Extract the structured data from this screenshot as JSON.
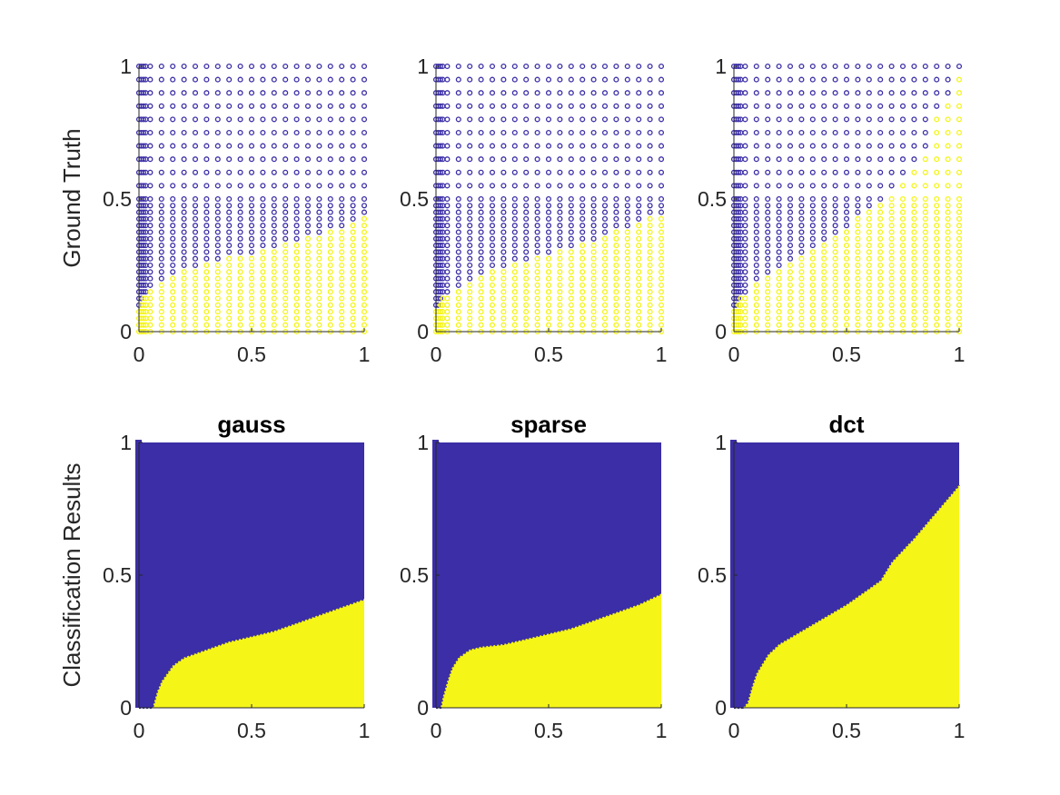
{
  "colors": {
    "class_a": "#3b2ea6",
    "class_b": "#f5f518",
    "axis": "#262626"
  },
  "row_labels": [
    "Ground Truth",
    "Classification Results"
  ],
  "chart_data": [
    {
      "type": "scatter",
      "row": "Ground Truth",
      "title": "",
      "xlim": [
        0,
        1
      ],
      "ylim": [
        0,
        1
      ],
      "xticks": [
        "0",
        "0.5",
        "1"
      ],
      "yticks": [
        "0",
        "0.5",
        "1"
      ],
      "boundary": {
        "x": [
          0,
          0.02,
          0.05,
          0.1,
          0.2,
          0.3,
          0.4,
          0.5,
          0.6,
          0.7,
          0.8,
          0.9,
          1.0
        ],
        "y": [
          0.08,
          0.13,
          0.16,
          0.19,
          0.23,
          0.26,
          0.28,
          0.3,
          0.32,
          0.34,
          0.37,
          0.4,
          0.43
        ]
      }
    },
    {
      "type": "scatter",
      "row": "Ground Truth",
      "title": "",
      "xlim": [
        0,
        1
      ],
      "ylim": [
        0,
        1
      ],
      "xticks": [
        "0",
        "0.5",
        "1"
      ],
      "yticks": [
        "0",
        "0.5",
        "1"
      ],
      "boundary": {
        "x": [
          0,
          0.02,
          0.05,
          0.1,
          0.2,
          0.3,
          0.4,
          0.5,
          0.6,
          0.7,
          0.8,
          0.9,
          1.0
        ],
        "y": [
          0.08,
          0.12,
          0.14,
          0.17,
          0.22,
          0.25,
          0.27,
          0.29,
          0.32,
          0.35,
          0.38,
          0.41,
          0.45
        ]
      }
    },
    {
      "type": "scatter",
      "row": "Ground Truth",
      "title": "",
      "xlim": [
        0,
        1
      ],
      "ylim": [
        0,
        1
      ],
      "xticks": [
        "0",
        "0.5",
        "1"
      ],
      "yticks": [
        "0",
        "0.5",
        "1"
      ],
      "boundary": {
        "x": [
          0,
          0.02,
          0.05,
          0.1,
          0.2,
          0.3,
          0.4,
          0.5,
          0.6,
          0.65,
          0.7,
          0.8,
          0.85,
          0.9,
          1.0
        ],
        "y": [
          0.08,
          0.12,
          0.15,
          0.18,
          0.24,
          0.3,
          0.35,
          0.4,
          0.46,
          0.49,
          0.55,
          0.62,
          0.7,
          0.82,
          0.98
        ]
      }
    },
    {
      "type": "scatter",
      "row": "Classification Results",
      "title": "gauss",
      "xlim": [
        0,
        1
      ],
      "ylim": [
        0,
        1
      ],
      "xticks": [
        "0",
        "0.5",
        "1"
      ],
      "yticks": [
        "0",
        "0.5",
        "1"
      ],
      "boundary": {
        "x": [
          0,
          0.03,
          0.06,
          0.08,
          0.1,
          0.15,
          0.2,
          0.3,
          0.4,
          0.5,
          0.6,
          0.7,
          0.8,
          0.9,
          1.0
        ],
        "y": [
          0,
          0,
          0,
          0.06,
          0.1,
          0.16,
          0.19,
          0.22,
          0.25,
          0.27,
          0.29,
          0.32,
          0.35,
          0.38,
          0.41
        ]
      }
    },
    {
      "type": "scatter",
      "row": "Classification Results",
      "title": "sparse",
      "xlim": [
        0,
        1
      ],
      "ylim": [
        0,
        1
      ],
      "xticks": [
        "0",
        "0.5",
        "1"
      ],
      "yticks": [
        "0",
        "0.5",
        "1"
      ],
      "boundary": {
        "x": [
          0,
          0.02,
          0.03,
          0.05,
          0.07,
          0.1,
          0.15,
          0.2,
          0.3,
          0.4,
          0.5,
          0.6,
          0.7,
          0.8,
          0.9,
          1.0
        ],
        "y": [
          0,
          0,
          0.04,
          0.1,
          0.15,
          0.19,
          0.22,
          0.23,
          0.24,
          0.26,
          0.28,
          0.3,
          0.33,
          0.36,
          0.39,
          0.43
        ]
      }
    },
    {
      "type": "scatter",
      "row": "Classification Results",
      "title": "dct",
      "xlim": [
        0,
        1
      ],
      "ylim": [
        0,
        1
      ],
      "xticks": [
        "0",
        "0.5",
        "1"
      ],
      "yticks": [
        "0",
        "0.5",
        "1"
      ],
      "boundary": {
        "x": [
          0,
          0.04,
          0.06,
          0.08,
          0.1,
          0.15,
          0.2,
          0.3,
          0.4,
          0.5,
          0.6,
          0.65,
          0.7,
          0.8,
          0.9,
          1.0
        ],
        "y": [
          0,
          0,
          0.02,
          0.08,
          0.13,
          0.2,
          0.24,
          0.29,
          0.34,
          0.39,
          0.45,
          0.48,
          0.55,
          0.64,
          0.74,
          0.84
        ]
      }
    }
  ]
}
